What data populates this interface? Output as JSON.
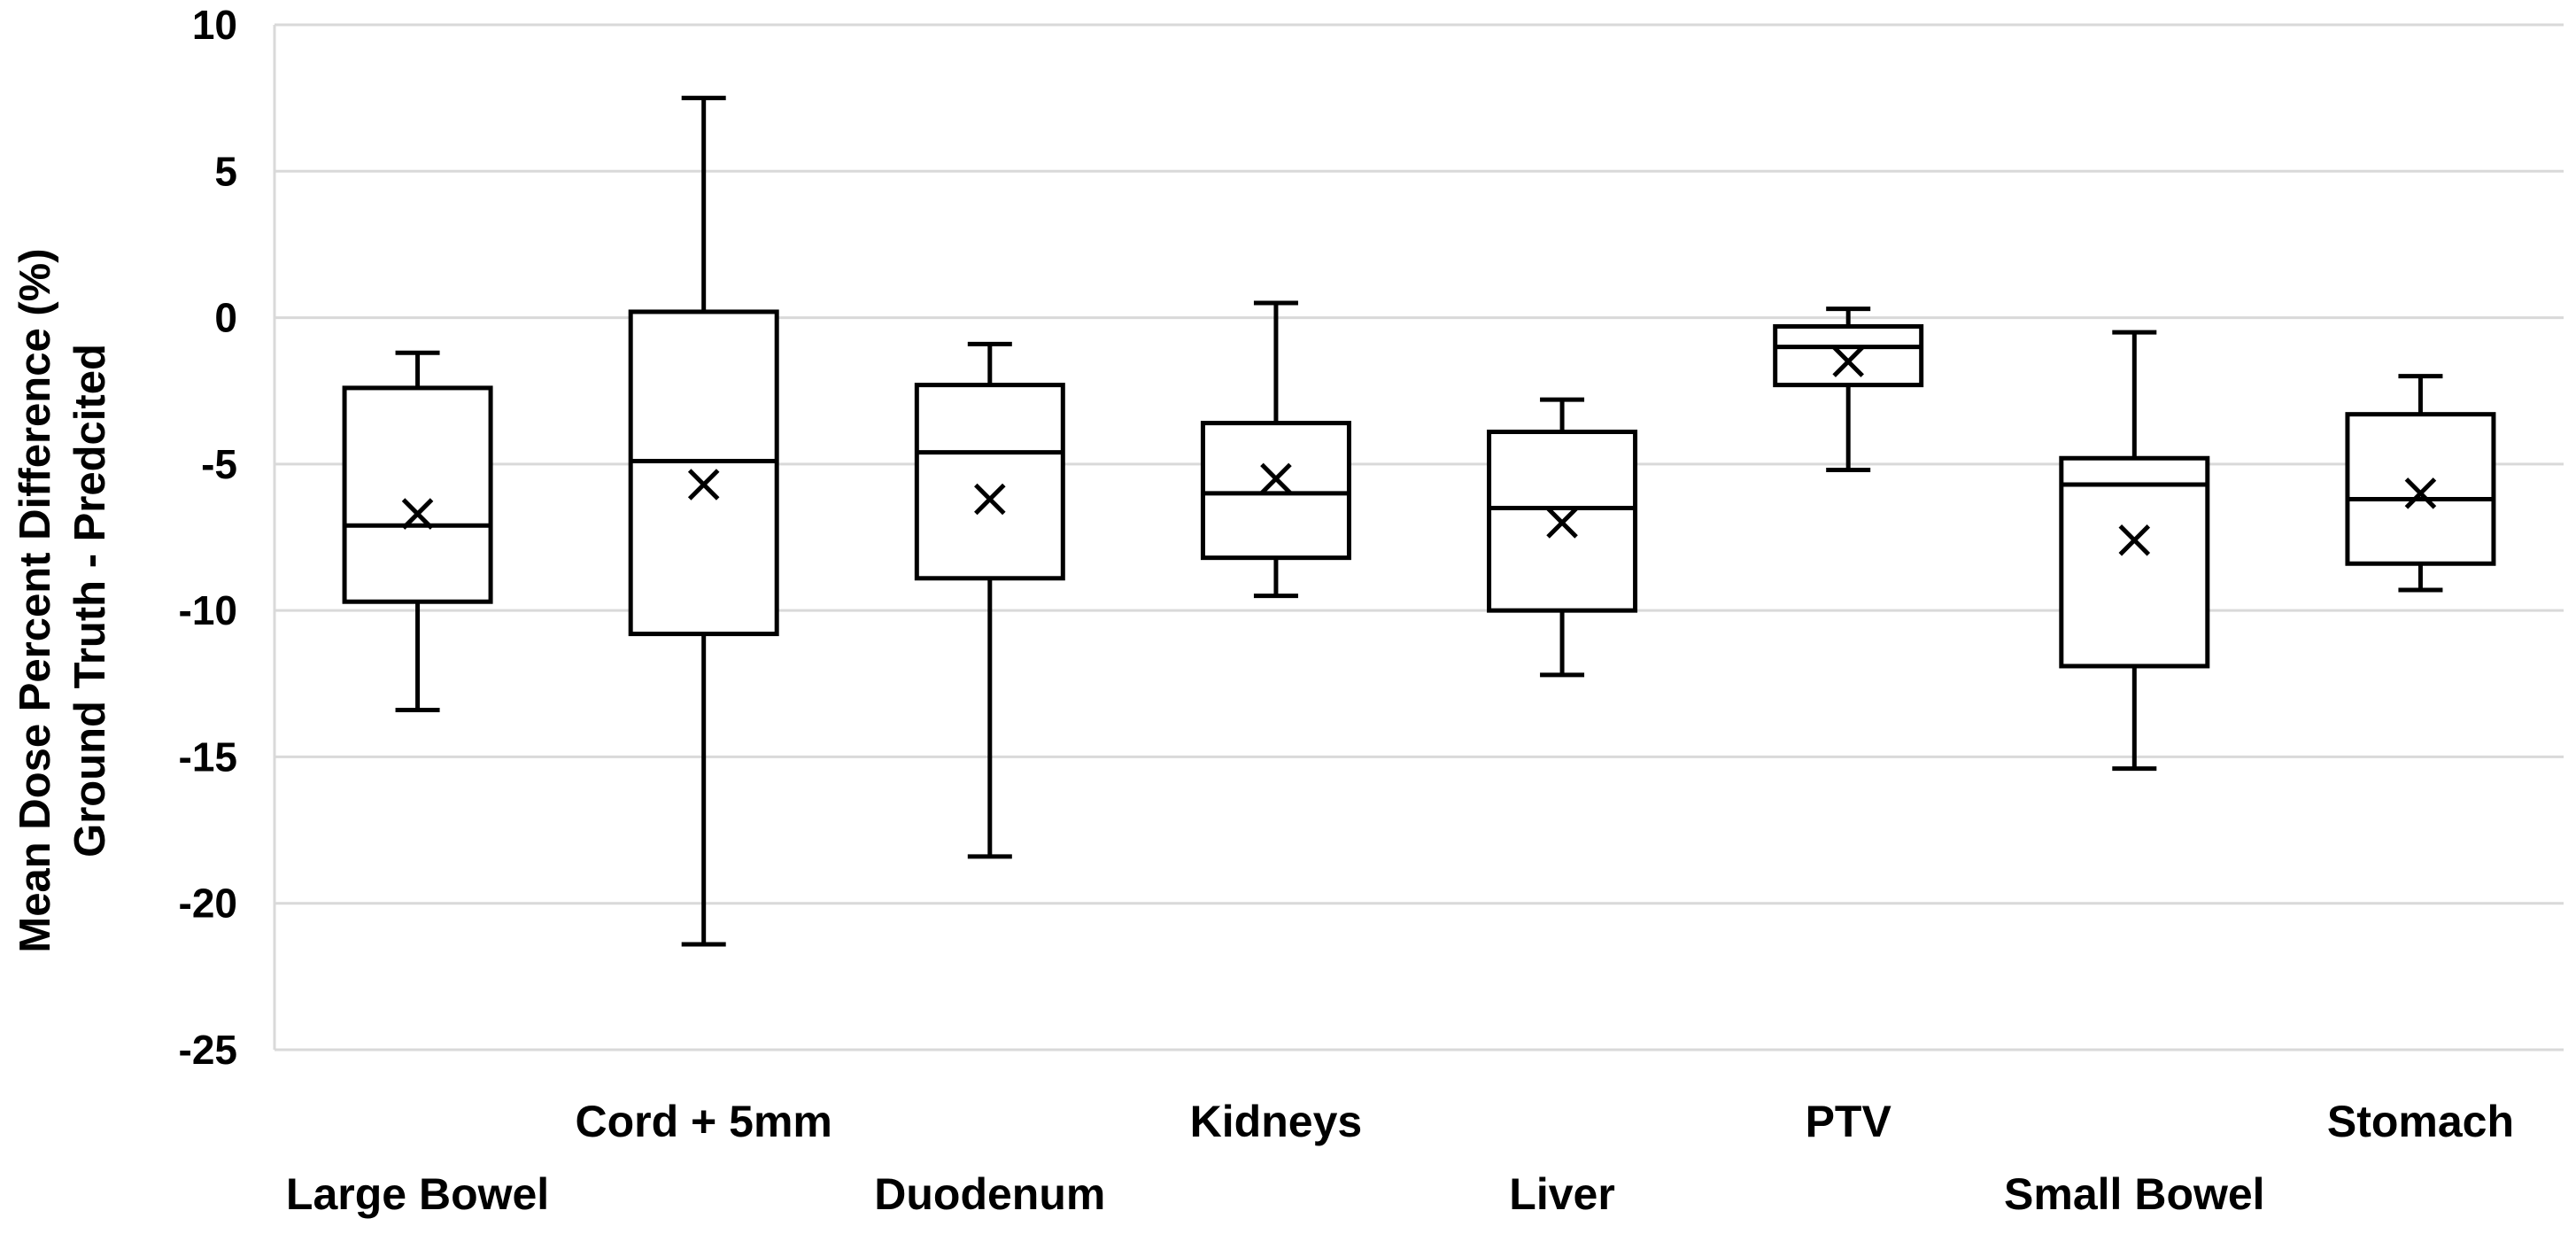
{
  "chart_data": {
    "type": "box",
    "title": "",
    "ylabel": [
      "Mean Dose Percent Difference (%)",
      "Ground Truth - Predcited"
    ],
    "xlabel": "",
    "ylim": [
      -25,
      10
    ],
    "yticks": [
      10,
      5,
      0,
      -5,
      -10,
      -15,
      -20,
      -25
    ],
    "grid": true,
    "colors": {
      "grid": "#d9d9d9",
      "box": "#000000",
      "background": "#ffffff"
    },
    "categories": [
      "Large Bowel",
      "Cord + 5mm",
      "Duodenum",
      "Kidneys",
      "Liver",
      "PTV",
      "Small Bowel",
      "Stomach"
    ],
    "boxes": [
      {
        "category": "Large Bowel",
        "min": -13.4,
        "q1": -9.7,
        "median": -7.1,
        "q3": -2.4,
        "max": -1.2,
        "mean": -6.7
      },
      {
        "category": "Cord + 5mm",
        "min": -21.4,
        "q1": -10.8,
        "median": -4.9,
        "q3": 0.2,
        "max": 7.5,
        "mean": -5.7
      },
      {
        "category": "Duodenum",
        "min": -18.4,
        "q1": -8.9,
        "median": -4.6,
        "q3": -2.3,
        "max": -0.9,
        "mean": -6.2
      },
      {
        "category": "Kidneys",
        "min": -9.5,
        "q1": -8.2,
        "median": -6.0,
        "q3": -3.6,
        "max": 0.5,
        "mean": -5.5
      },
      {
        "category": "Liver",
        "min": -12.2,
        "q1": -10.0,
        "median": -6.5,
        "q3": -3.9,
        "max": -2.8,
        "mean": -7.0
      },
      {
        "category": "PTV",
        "min": -5.2,
        "q1": -2.3,
        "median": -1.0,
        "q3": -0.3,
        "max": 0.3,
        "mean": -1.5
      },
      {
        "category": "Small Bowel",
        "min": -15.4,
        "q1": -11.9,
        "median": -5.7,
        "q3": -4.8,
        "max": -0.5,
        "mean": -7.6
      },
      {
        "category": "Stomach",
        "min": -9.3,
        "q1": -8.4,
        "median": -6.2,
        "q3": -3.3,
        "max": -2.0,
        "mean": -6.0
      }
    ]
  }
}
